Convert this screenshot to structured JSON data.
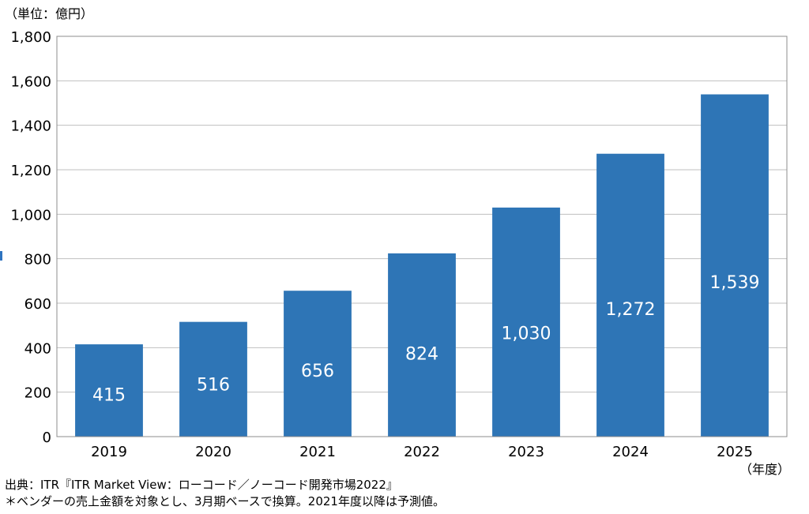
{
  "colors": {
    "bar": "#2e75b6",
    "grid": "#bfbfbf",
    "axis": "#8c8c8c",
    "value_label": "#ffffff"
  },
  "chart_data": {
    "type": "bar",
    "unit_label": "（単位：億円）",
    "x_unit_label": "（年度）",
    "categories": [
      "2019",
      "2020",
      "2021",
      "2022",
      "2023",
      "2024",
      "2025"
    ],
    "values": [
      415,
      516,
      656,
      824,
      1030,
      1272,
      1539
    ],
    "value_labels": [
      "415",
      "516",
      "656",
      "824",
      "1,030",
      "1,272",
      "1,539"
    ],
    "ylim": [
      0,
      1800
    ],
    "yticks": [
      0,
      200,
      400,
      600,
      800,
      1000,
      1200,
      1400,
      1600,
      1800
    ],
    "ytick_labels": [
      "0",
      "200",
      "400",
      "600",
      "800",
      "1,000",
      "1,200",
      "1,400",
      "1,600",
      "1,800"
    ],
    "grid": true
  },
  "footer": {
    "source": "出典：ITR『ITR Market View：ローコード／ノーコード開発市場2022』",
    "note": "＊ベンダーの売上金額を対象とし、3月期ベースで換算。2021年度以降は予測値。"
  }
}
